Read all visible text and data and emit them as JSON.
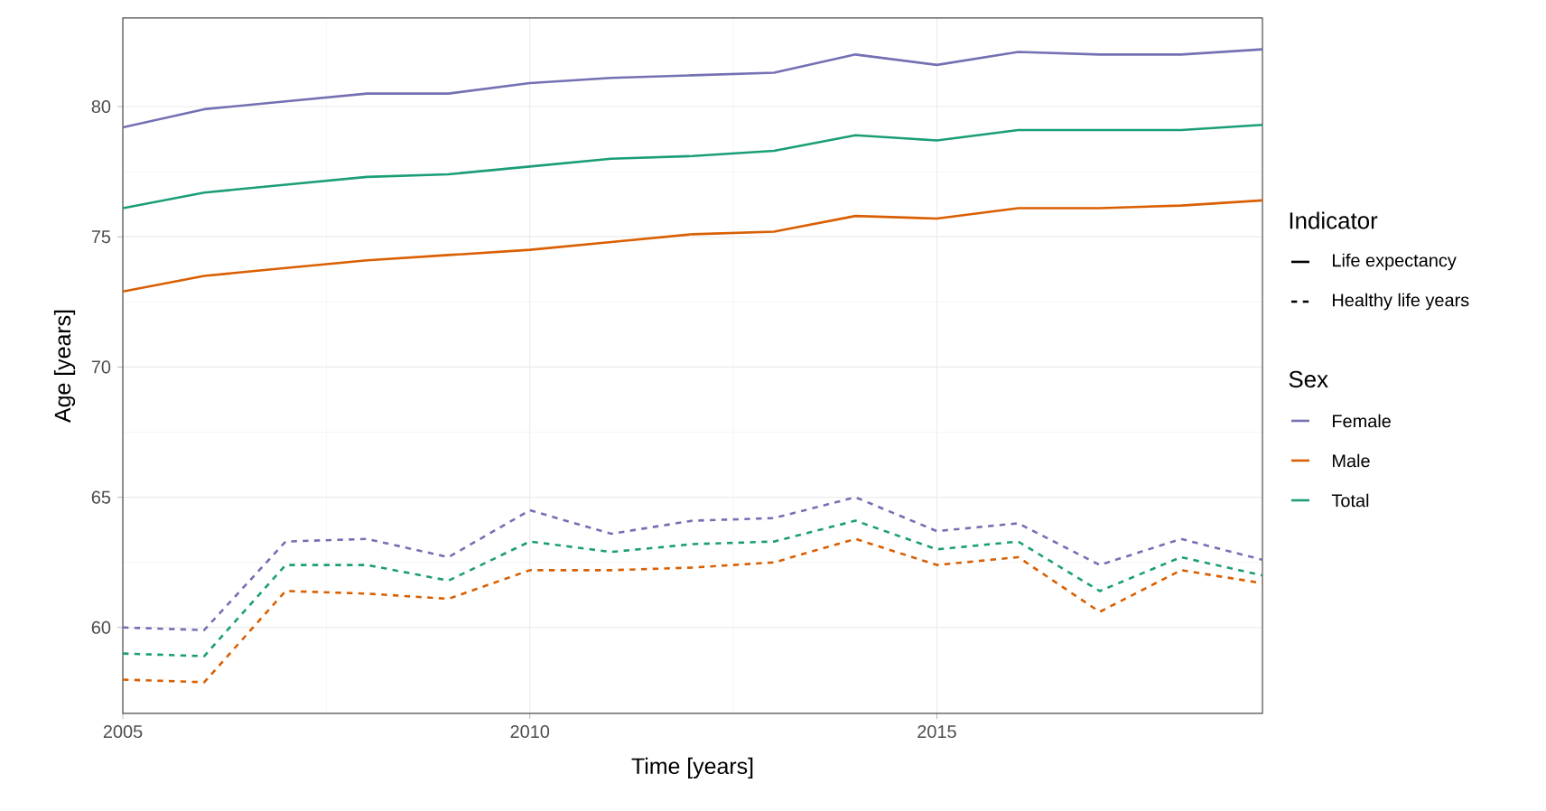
{
  "chart_data": {
    "type": "line",
    "xlabel": "Time [years]",
    "ylabel": "Age [years]",
    "legend_title": "Sex",
    "annotations": [
      "Indicator",
      "Life expectancy",
      "Healthy life years"
    ],
    "x": [
      2005,
      2006,
      2007,
      2008,
      2009,
      2010,
      2011,
      2012,
      2013,
      2014,
      2015,
      2016,
      2017,
      2018,
      2019
    ],
    "xlim": [
      2005,
      2019
    ],
    "xticks": [
      2005,
      2010,
      2015
    ],
    "ylim": [
      56.7,
      83.4
    ],
    "yticks": [
      60,
      65,
      70,
      75,
      80
    ],
    "grid": true,
    "legend": "right",
    "marker": "none",
    "series": [
      {
        "name": "Female",
        "color": "#7570b3",
        "line_style": "solid",
        "values": [
          79.2,
          79.9,
          80.2,
          80.5,
          80.5,
          80.9,
          81.1,
          81.2,
          81.3,
          82.0,
          81.6,
          82.1,
          82.0,
          82.0,
          82.2
        ]
      },
      {
        "name": "Male",
        "color": "#d95f02",
        "line_style": "solid",
        "values": [
          72.9,
          73.5,
          73.8,
          74.1,
          74.3,
          74.5,
          74.8,
          75.1,
          75.2,
          75.8,
          75.7,
          76.1,
          76.1,
          76.2,
          76.4
        ]
      },
      {
        "name": "Total",
        "color": "#1b9e77",
        "line_style": "solid",
        "values": [
          76.1,
          76.7,
          77.0,
          77.3,
          77.4,
          77.7,
          78.0,
          78.1,
          78.3,
          78.9,
          78.7,
          79.1,
          79.1,
          79.1,
          79.3
        ]
      },
      {
        "color": "#7570b3",
        "line_style": "dashed",
        "values": [
          60.0,
          59.9,
          63.3,
          63.4,
          62.7,
          64.5,
          63.6,
          64.1,
          64.2,
          65.0,
          63.7,
          64.0,
          62.4,
          63.4,
          62.6
        ]
      },
      {
        "color": "#d95f02",
        "line_style": "dashed",
        "values": [
          58.0,
          57.9,
          61.4,
          61.3,
          61.1,
          62.2,
          62.2,
          62.3,
          62.5,
          63.4,
          62.4,
          62.7,
          60.6,
          62.2,
          61.7
        ]
      },
      {
        "color": "#1b9e77",
        "line_style": "dashed",
        "values": [
          59.0,
          58.9,
          62.4,
          62.4,
          61.8,
          63.3,
          62.9,
          63.2,
          63.3,
          64.1,
          63.0,
          63.3,
          61.4,
          62.7,
          62.0
        ]
      }
    ]
  }
}
